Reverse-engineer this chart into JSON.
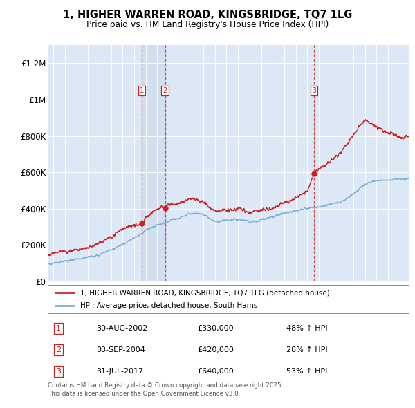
{
  "title": "1, HIGHER WARREN ROAD, KINGSBRIDGE, TQ7 1LG",
  "subtitle": "Price paid vs. HM Land Registry's House Price Index (HPI)",
  "bg_color": "#dce8f5",
  "legend_line1": "1, HIGHER WARREN ROAD, KINGSBRIDGE, TQ7 1LG (detached house)",
  "legend_line2": "HPI: Average price, detached house, South Hams",
  "sales": [
    {
      "label": "1",
      "date": "30-AUG-2002",
      "price": "£330,000",
      "hpi": "48% ↑ HPI",
      "year": 2002.665
    },
    {
      "label": "2",
      "date": "03-SEP-2004",
      "price": "£420,000",
      "hpi": "28% ↑ HPI",
      "year": 2004.675
    },
    {
      "label": "3",
      "date": "31-JUL-2017",
      "price": "£640,000",
      "hpi": "53% ↑ HPI",
      "year": 2017.58
    }
  ],
  "footer1": "Contains HM Land Registry data © Crown copyright and database right 2025.",
  "footer2": "This data is licensed under the Open Government Licence v3.0.",
  "ylim": [
    0,
    1300000
  ],
  "xlim": [
    1994.5,
    2025.8
  ],
  "yticks": [
    0,
    200000,
    400000,
    600000,
    800000,
    1000000,
    1200000
  ],
  "ytick_labels": [
    "£0",
    "£200K",
    "£400K",
    "£600K",
    "£800K",
    "£1M",
    "£1.2M"
  ],
  "red_color": "#cc2222",
  "blue_color": "#7aadd4",
  "shade_color": "#c8d8ee",
  "shade_alpha": 0.55
}
